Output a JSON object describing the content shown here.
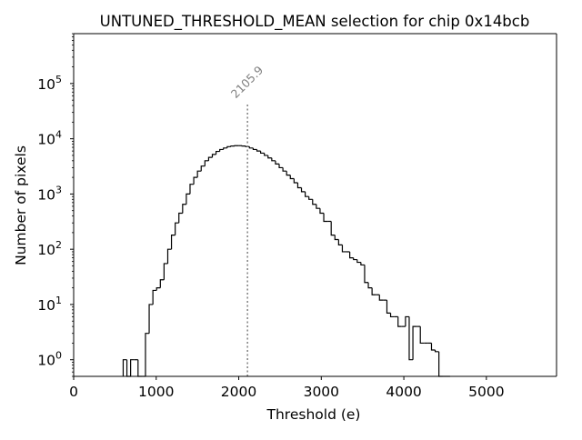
{
  "chart_data": {
    "type": "histogram",
    "title": "UNTUNED_THRESHOLD_MEAN selection for chip 0x14bcb",
    "xlabel": "Threshold (e)",
    "ylabel": "Number of pixels",
    "xlim": [
      0,
      5850
    ],
    "ylim": [
      0.5,
      800000
    ],
    "yscale": "log",
    "x_ticks": [
      0,
      1000,
      2000,
      3000,
      4000,
      5000
    ],
    "x_tick_labels": [
      "0",
      "1000",
      "2000",
      "3000",
      "4000",
      "5000"
    ],
    "y_ticks": [
      1,
      10,
      100,
      1000,
      10000,
      100000
    ],
    "y_tick_labels": [
      {
        "base": "10",
        "exp": "0"
      },
      {
        "base": "10",
        "exp": "1"
      },
      {
        "base": "10",
        "exp": "2"
      },
      {
        "base": "10",
        "exp": "3"
      },
      {
        "base": "10",
        "exp": "4"
      },
      {
        "base": "10",
        "exp": "5"
      }
    ],
    "bin_width": 45,
    "series": [
      {
        "name": "pixels",
        "color": "#000000",
        "bins": [
          [
            600,
            1
          ],
          [
            645,
            0
          ],
          [
            690,
            1
          ],
          [
            735,
            1
          ],
          [
            780,
            0
          ],
          [
            825,
            0
          ],
          [
            870,
            3
          ],
          [
            915,
            10
          ],
          [
            960,
            18
          ],
          [
            1005,
            20
          ],
          [
            1050,
            28
          ],
          [
            1095,
            55
          ],
          [
            1140,
            100
          ],
          [
            1185,
            180
          ],
          [
            1230,
            300
          ],
          [
            1275,
            450
          ],
          [
            1320,
            650
          ],
          [
            1365,
            1000
          ],
          [
            1410,
            1500
          ],
          [
            1455,
            2000
          ],
          [
            1500,
            2600
          ],
          [
            1545,
            3200
          ],
          [
            1590,
            4000
          ],
          [
            1635,
            4600
          ],
          [
            1680,
            5200
          ],
          [
            1725,
            5900
          ],
          [
            1770,
            6400
          ],
          [
            1815,
            6800
          ],
          [
            1860,
            7200
          ],
          [
            1905,
            7400
          ],
          [
            1950,
            7500
          ],
          [
            1995,
            7500
          ],
          [
            2040,
            7400
          ],
          [
            2085,
            7200
          ],
          [
            2130,
            6800
          ],
          [
            2175,
            6400
          ],
          [
            2220,
            6000
          ],
          [
            2265,
            5500
          ],
          [
            2310,
            5000
          ],
          [
            2355,
            4500
          ],
          [
            2400,
            4000
          ],
          [
            2445,
            3500
          ],
          [
            2490,
            3000
          ],
          [
            2535,
            2600
          ],
          [
            2580,
            2200
          ],
          [
            2625,
            1900
          ],
          [
            2670,
            1600
          ],
          [
            2715,
            1300
          ],
          [
            2760,
            1100
          ],
          [
            2805,
            900
          ],
          [
            2850,
            800
          ],
          [
            2895,
            650
          ],
          [
            2940,
            550
          ],
          [
            2985,
            450
          ],
          [
            3030,
            320
          ],
          [
            3075,
            320
          ],
          [
            3120,
            180
          ],
          [
            3165,
            150
          ],
          [
            3210,
            120
          ],
          [
            3255,
            90
          ],
          [
            3300,
            90
          ],
          [
            3345,
            70
          ],
          [
            3390,
            65
          ],
          [
            3435,
            58
          ],
          [
            3480,
            52
          ],
          [
            3525,
            25
          ],
          [
            3570,
            20
          ],
          [
            3615,
            15
          ],
          [
            3660,
            15
          ],
          [
            3705,
            12
          ],
          [
            3750,
            12
          ],
          [
            3795,
            7
          ],
          [
            3840,
            6
          ],
          [
            3885,
            6
          ],
          [
            3930,
            4
          ],
          [
            3975,
            4
          ],
          [
            4020,
            6
          ],
          [
            4065,
            1
          ],
          [
            4110,
            4
          ],
          [
            4155,
            4
          ],
          [
            4200,
            2
          ],
          [
            4245,
            2
          ],
          [
            4290,
            2
          ],
          [
            4335,
            1.5
          ],
          [
            4380,
            1.4
          ],
          [
            4425,
            0
          ],
          [
            4470,
            0
          ],
          [
            4515,
            0.5
          ]
        ]
      }
    ],
    "annotations": [
      {
        "type": "vline",
        "x": 2105.9,
        "label": "2105.9",
        "style": "dotted",
        "color": "#808080"
      }
    ]
  }
}
